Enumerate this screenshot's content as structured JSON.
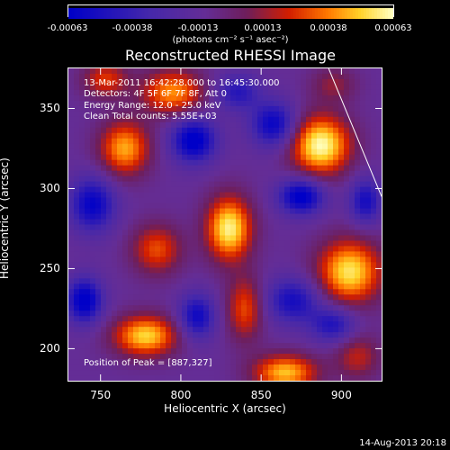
{
  "colorbar": {
    "ticks": [
      "-0.00063",
      "-0.00038",
      "-0.00013",
      "0.00013",
      "0.00038",
      "0.00063"
    ],
    "units": "(photons cm⁻² s⁻¹ asec⁻²)"
  },
  "annotations": {
    "time": "13-Mar-2011 16:42:28.000 to 16:45:30.000",
    "detectors": "Detectors: 4F 5F 6F 7F 8F, Att 0",
    "energy": "Energy Range: 12.0 - 25.0 keV",
    "clean": "Clean     Total counts: 5.55E+03",
    "peak": "Position of Peak = [887,327]"
  },
  "footer": {
    "date": "14-Aug-2013 20:18"
  },
  "colors": {
    "low": "#1010c0",
    "mid": "#6a2fa0",
    "high": "#ffffa0",
    "background": "#000000"
  },
  "chart_data": {
    "type": "heatmap",
    "title": "Reconstructed RHESSI Image",
    "xlabel": "Heliocentric X (arcsec)",
    "ylabel": "Heliocentric Y (arcsec)",
    "xlim": [
      730,
      925
    ],
    "ylim": [
      180,
      375
    ],
    "xticks": [
      750,
      800,
      850,
      900
    ],
    "yticks": [
      200,
      250,
      300,
      350
    ],
    "clim": [
      -0.00063,
      0.00063
    ],
    "sources": [
      {
        "x": 887,
        "y": 327,
        "amp": 1.0,
        "sx": 13,
        "sy": 13
      },
      {
        "x": 830,
        "y": 275,
        "amp": 0.95,
        "sx": 10,
        "sy": 14
      },
      {
        "x": 905,
        "y": 248,
        "amp": 0.9,
        "sx": 14,
        "sy": 14
      },
      {
        "x": 778,
        "y": 208,
        "amp": 0.85,
        "sx": 14,
        "sy": 9
      },
      {
        "x": 795,
        "y": 360,
        "amp": 0.7,
        "sx": 14,
        "sy": 10
      },
      {
        "x": 765,
        "y": 325,
        "amp": 0.75,
        "sx": 11,
        "sy": 12
      },
      {
        "x": 753,
        "y": 368,
        "amp": 0.5,
        "sx": 10,
        "sy": 8
      },
      {
        "x": 865,
        "y": 185,
        "amp": 0.8,
        "sx": 14,
        "sy": 8
      },
      {
        "x": 840,
        "y": 225,
        "amp": 0.55,
        "sx": 8,
        "sy": 14
      },
      {
        "x": 785,
        "y": 262,
        "amp": 0.55,
        "sx": 11,
        "sy": 11
      },
      {
        "x": 910,
        "y": 195,
        "amp": 0.4,
        "sx": 10,
        "sy": 10
      },
      {
        "x": 895,
        "y": 365,
        "amp": 0.3,
        "sx": 10,
        "sy": 8
      },
      {
        "x": 858,
        "y": 340,
        "amp": -0.7,
        "sx": 10,
        "sy": 10
      },
      {
        "x": 808,
        "y": 330,
        "amp": -0.8,
        "sx": 10,
        "sy": 10
      },
      {
        "x": 745,
        "y": 290,
        "amp": -0.7,
        "sx": 10,
        "sy": 12
      },
      {
        "x": 875,
        "y": 295,
        "amp": -0.8,
        "sx": 10,
        "sy": 8
      },
      {
        "x": 740,
        "y": 230,
        "amp": -0.8,
        "sx": 8,
        "sy": 10
      },
      {
        "x": 870,
        "y": 230,
        "amp": -0.6,
        "sx": 12,
        "sy": 10
      },
      {
        "x": 810,
        "y": 220,
        "amp": -0.65,
        "sx": 8,
        "sy": 10
      },
      {
        "x": 915,
        "y": 292,
        "amp": -0.6,
        "sx": 7,
        "sy": 10
      },
      {
        "x": 835,
        "y": 360,
        "amp": -0.5,
        "sx": 10,
        "sy": 8
      },
      {
        "x": 895,
        "y": 215,
        "amp": -0.55,
        "sx": 10,
        "sy": 8
      }
    ],
    "limb": [
      [
        892,
        375
      ],
      [
        925,
        295
      ]
    ]
  }
}
